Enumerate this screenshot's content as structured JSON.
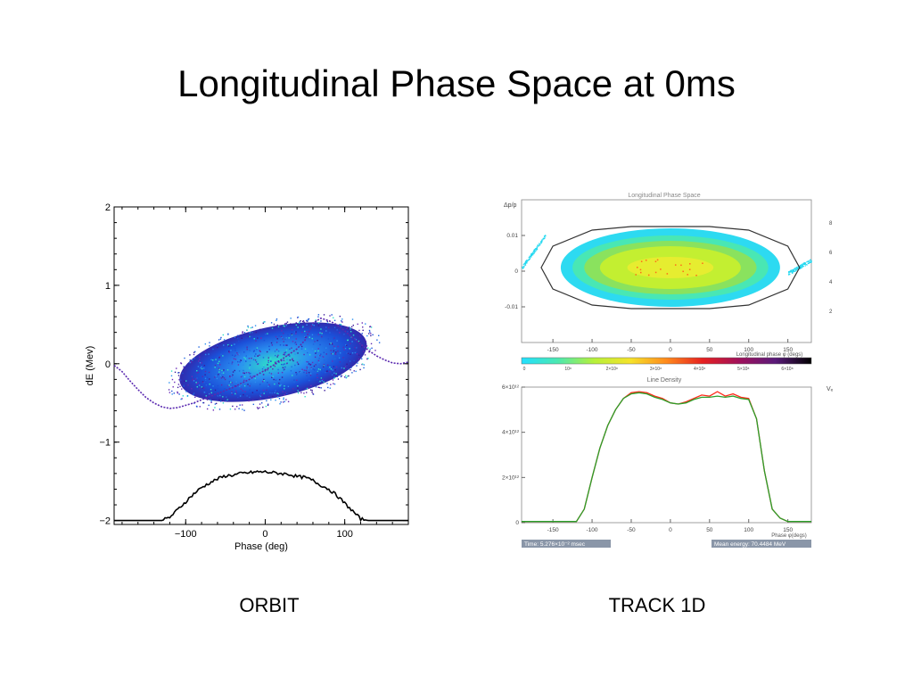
{
  "slide": {
    "title": "Longitudinal Phase Space at 0ms",
    "caption_left": "ORBIT",
    "caption_right": "TRACK 1D"
  },
  "chart_data": [
    {
      "type": "scatter",
      "name": "orbit",
      "xlabel": "Phase (deg)",
      "ylabel": "dE (Mev)",
      "xlim": [
        -190,
        180
      ],
      "ylim": [
        -2.05,
        2
      ],
      "xticks": [
        -100,
        0,
        100
      ],
      "xtick_labels": [
        "−100",
        "0",
        "100"
      ],
      "yticks": [
        2,
        1,
        0,
        -1,
        -2
      ],
      "ytick_labels": [
        "2",
        "1",
        "0",
        "−1",
        "−2"
      ],
      "separatrix": {
        "x": [
          -190,
          -180,
          -170,
          -160,
          -150,
          -140,
          -130,
          -120,
          -110,
          -100,
          -90,
          -80,
          -70,
          -60,
          -50,
          -40,
          -30,
          -20,
          -10,
          0,
          10,
          20,
          30,
          40,
          50,
          60,
          70,
          80,
          90,
          100,
          110,
          120,
          130,
          140,
          150,
          160,
          170,
          180
        ],
        "y": [
          -0.02,
          -0.1,
          -0.22,
          -0.33,
          -0.43,
          -0.5,
          -0.55,
          -0.57,
          -0.56,
          -0.53,
          -0.5,
          -0.46,
          -0.42,
          -0.38,
          -0.34,
          -0.3,
          -0.25,
          -0.2,
          -0.14,
          -0.08,
          -0.02,
          0.05,
          0.12,
          0.19,
          0.3,
          0.52,
          0.58,
          0.55,
          0.5,
          0.42,
          0.33,
          0.25,
          0.17,
          0.1,
          0.05,
          0.01,
          0.0,
          0.02
        ]
      },
      "line_density": {
        "x": [
          -190,
          -130,
          -120,
          -110,
          -100,
          -90,
          -80,
          -70,
          -60,
          -50,
          -40,
          -30,
          -20,
          -10,
          0,
          10,
          20,
          30,
          40,
          50,
          60,
          70,
          80,
          90,
          100,
          110,
          120,
          130,
          180
        ],
        "y": [
          -2.0,
          -2.0,
          -1.96,
          -1.86,
          -1.76,
          -1.66,
          -1.58,
          -1.52,
          -1.47,
          -1.43,
          -1.42,
          -1.4,
          -1.39,
          -1.38,
          -1.38,
          -1.39,
          -1.4,
          -1.41,
          -1.44,
          -1.45,
          -1.49,
          -1.55,
          -1.6,
          -1.68,
          -1.78,
          -1.88,
          -1.98,
          -2.0,
          -2.0
        ]
      },
      "bunch": {
        "center_x": 10,
        "center_y": 0.02,
        "half_width_x": 120,
        "half_height_y": 0.45,
        "tilt_per_deg": 0.0018
      }
    },
    {
      "type": "heatmap",
      "name": "track-phase-space",
      "title": "Longitudinal Phase Space",
      "xlabel": "Longitudinal phase φ (degs)",
      "ylabel": "Δp/p",
      "xlim": [
        -190,
        180
      ],
      "ylim": [
        -0.02,
        0.02
      ],
      "xticks": [
        -150,
        -100,
        -50,
        0,
        50,
        100,
        150
      ],
      "yticks": [
        0.01,
        0,
        -0.01
      ],
      "ytick_labels": [
        "0.01",
        "0",
        "-0.01"
      ],
      "right_labels": [
        "8",
        "6",
        "4",
        "2"
      ],
      "bucket": {
        "x": [
          -165,
          -150,
          -100,
          -50,
          0,
          50,
          100,
          150,
          165
        ],
        "y_top": [
          0.0,
          0.006,
          0.0105,
          0.0115,
          0.0115,
          0.0115,
          0.0105,
          0.006,
          0.0
        ]
      }
    },
    {
      "type": "bar",
      "name": "colorbar",
      "tick_labels": [
        "0",
        "10⁸",
        "2×10⁸",
        "3×10⁸",
        "4×10⁸",
        "5×10⁸",
        "6×10⁸"
      ],
      "colors": [
        "#22e0ff",
        "#4be8b0",
        "#b6f03a",
        "#f5e32a",
        "#ff8a1c",
        "#e62020",
        "#a0105a",
        "#5a1a7a",
        "#000000"
      ]
    },
    {
      "type": "line",
      "title": "Line Density",
      "xlabel": "Phase φ(degs)",
      "ylabel": "Vₑ",
      "xlim": [
        -190,
        180
      ],
      "ylim": [
        0,
        6000000000000.0
      ],
      "xticks": [
        -150,
        -100,
        -50,
        0,
        50,
        100,
        150
      ],
      "yticks": [
        0,
        2000000000000.0,
        4000000000000.0,
        6000000000000.0
      ],
      "ytick_labels": [
        "0",
        "2×10¹²",
        "4×10¹²",
        "6×10¹²"
      ],
      "x": [
        -190,
        -170,
        -150,
        -120,
        -110,
        -100,
        -90,
        -80,
        -70,
        -60,
        -50,
        -40,
        -30,
        -20,
        -10,
        0,
        10,
        20,
        30,
        40,
        50,
        60,
        70,
        80,
        90,
        100,
        110,
        120,
        130,
        140,
        150,
        160,
        170,
        180
      ],
      "series": [
        {
          "values": [
            50000000000.0,
            50000000000.0,
            50000000000.0,
            50000000000.0,
            600000000000.0,
            2000000000000.0,
            3300000000000.0,
            4300000000000.0,
            5000000000000.0,
            5500000000000.0,
            5750000000000.0,
            5800000000000.0,
            5750000000000.0,
            5600000000000.0,
            5500000000000.0,
            5300000000000.0,
            5250000000000.0,
            5350000000000.0,
            5500000000000.0,
            5650000000000.0,
            5600000000000.0,
            5800000000000.0,
            5600000000000.0,
            5700000000000.0,
            5550000000000.0,
            5500000000000.0,
            4600000000000.0,
            2300000000000.0,
            600000000000.0,
            200000000000.0,
            50000000000.0,
            50000000000.0,
            50000000000.0,
            50000000000.0
          ],
          "color": "#ff2a1a"
        },
        {
          "values": [
            50000000000.0,
            50000000000.0,
            50000000000.0,
            50000000000.0,
            600000000000.0,
            2000000000000.0,
            3300000000000.0,
            4300000000000.0,
            5000000000000.0,
            5500000000000.0,
            5700000000000.0,
            5750000000000.0,
            5700000000000.0,
            5550000000000.0,
            5450000000000.0,
            5300000000000.0,
            5250000000000.0,
            5300000000000.0,
            5450000000000.0,
            5550000000000.0,
            5550000000000.0,
            5600000000000.0,
            5550000000000.0,
            5600000000000.0,
            5500000000000.0,
            5450000000000.0,
            4600000000000.0,
            2300000000000.0,
            600000000000.0,
            200000000000.0,
            50000000000.0,
            50000000000.0,
            50000000000.0,
            50000000000.0
          ],
          "color": "#2aa02a"
        }
      ]
    }
  ],
  "status": {
    "time_label": "Time: 5.276×10⁻² msec",
    "energy_label": "Mean energy: 70.4484 MeV"
  }
}
